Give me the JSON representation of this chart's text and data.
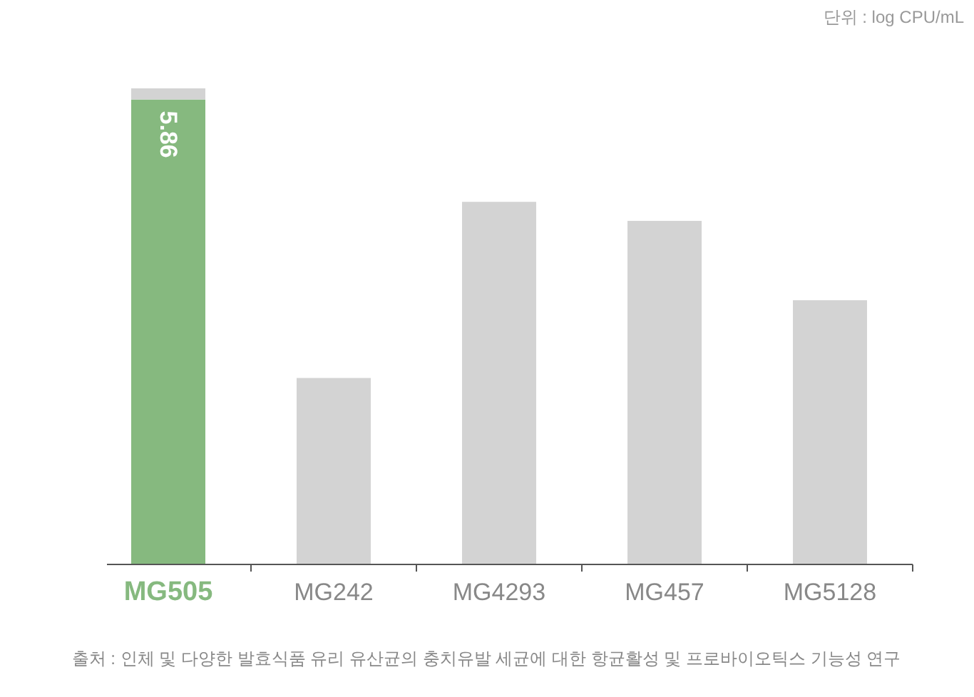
{
  "chart_data": {
    "type": "bar",
    "categories": [
      "MG505",
      "MG242",
      "MG4293",
      "MG457",
      "MG5128"
    ],
    "stacked": true,
    "series": [
      {
        "colors": [
          "#86b97f",
          "#d3d3d3",
          "#d3d3d3",
          "#d3d3d3",
          "#d3d3d3"
        ],
        "values": [
          5.86,
          2.35,
          4.57,
          4.33,
          3.33
        ],
        "value_labels": [
          "5.86",
          null,
          null,
          null,
          null
        ]
      },
      {
        "color": "#d3d3d3",
        "values": [
          0.14,
          null,
          null,
          null,
          null
        ]
      }
    ],
    "annotations": [
      "단위 : log CPU/mL",
      "출처 : 인체 및 다양한 발효식품 유리 유산균의 충치유발 세균에 대한 항균활성 및 프로바이오틱스 기능성 연구"
    ]
  }
}
